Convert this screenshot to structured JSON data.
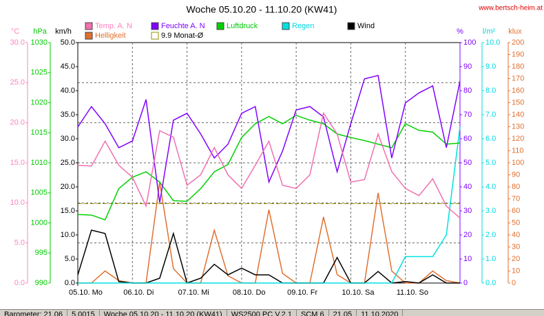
{
  "chart_data": {
    "type": "line",
    "title": "Woche 05.10.20 - 11.10.20 (KW41)",
    "source": "www.bertsch-heim.at",
    "x": [
      0,
      6,
      12,
      18,
      24,
      30,
      36,
      42,
      48,
      54,
      60,
      66,
      72,
      78,
      84,
      90,
      96,
      102,
      108,
      114,
      120,
      126,
      132,
      138,
      144,
      150,
      156,
      162,
      168
    ],
    "xlim": [
      0,
      168
    ],
    "xticks": [
      {
        "value": 0,
        "label": "05.10. Mo"
      },
      {
        "value": 24,
        "label": "06.10. Di"
      },
      {
        "value": 48,
        "label": "07.10. Mi"
      },
      {
        "value": 72,
        "label": "08.10. Do"
      },
      {
        "value": 96,
        "label": "09.10. Fr"
      },
      {
        "value": 120,
        "label": "10.10. Sa"
      },
      {
        "value": 144,
        "label": "11.10. So"
      }
    ],
    "grid": true,
    "axes": [
      {
        "label": "°C",
        "color": "#ff80c0",
        "lim": [
          0,
          30
        ],
        "ticks": [
          {
            "value": 0,
            "label": "0.0"
          },
          {
            "value": 5,
            "label": "5.0"
          },
          {
            "value": 10,
            "label": "10.0"
          },
          {
            "value": 15,
            "label": "15.0"
          },
          {
            "value": 20,
            "label": "20.0"
          },
          {
            "value": 25,
            "label": "25.0"
          },
          {
            "value": 30,
            "label": "30.0"
          }
        ]
      },
      {
        "label": "hPa",
        "color": "#00c800",
        "lim": [
          990,
          1030
        ],
        "ticks": [
          990,
          995,
          1000,
          1005,
          1010,
          1015,
          1020,
          1025,
          1030
        ]
      },
      {
        "label": "km/h",
        "color": "#000000",
        "lim": [
          0,
          50
        ],
        "ticks": [
          {
            "value": 0,
            "label": "0.0"
          },
          {
            "value": 5,
            "label": "5.0"
          },
          {
            "value": 10,
            "label": "10.0"
          },
          {
            "value": 15,
            "label": "15.0"
          },
          {
            "value": 20,
            "label": "20.0"
          },
          {
            "value": 25,
            "label": "25.0"
          },
          {
            "value": 30,
            "label": "30.0"
          },
          {
            "value": 35,
            "label": "35.0"
          },
          {
            "value": 40,
            "label": "40.0"
          },
          {
            "value": 45,
            "label": "45.0"
          },
          {
            "value": 50,
            "label": "50.0"
          }
        ]
      },
      {
        "label": "%",
        "color": "#8000ff",
        "lim": [
          0,
          100
        ],
        "ticks": [
          0,
          10,
          20,
          30,
          40,
          50,
          60,
          70,
          80,
          90,
          100
        ]
      },
      {
        "label": "l/m²",
        "color": "#00d8e0",
        "lim": [
          0,
          10
        ],
        "ticks": [
          {
            "value": 0,
            "label": "0.0"
          },
          {
            "value": 1,
            "label": "1.0"
          },
          {
            "value": 2,
            "label": "2.0"
          },
          {
            "value": 3,
            "label": "3.0"
          },
          {
            "value": 4,
            "label": "4.0"
          },
          {
            "value": 5,
            "label": "5.0"
          },
          {
            "value": 6,
            "label": "6.0"
          },
          {
            "value": 7,
            "label": "7.0"
          },
          {
            "value": 8,
            "label": "8.0"
          },
          {
            "value": 9,
            "label": "9.0"
          },
          {
            "value": 10,
            "label": "10.0"
          }
        ]
      },
      {
        "label": "klux",
        "color": "#e07030",
        "lim": [
          0,
          200
        ],
        "ticks": [
          0,
          10,
          20,
          30,
          40,
          50,
          60,
          70,
          80,
          90,
          100,
          110,
          120,
          130,
          140,
          150,
          160,
          170,
          180,
          190,
          200
        ]
      }
    ],
    "series": [
      {
        "name": "Temp. A. N",
        "color": "#f070b0",
        "axis": 0,
        "values": [
          14.7,
          14.6,
          17.7,
          14.7,
          13.2,
          9.6,
          19.0,
          18.2,
          12.2,
          13.5,
          16.9,
          13.5,
          11.8,
          14.7,
          17.7,
          12.2,
          11.8,
          13.5,
          21.2,
          18.6,
          12.6,
          12.9,
          18.6,
          13.9,
          11.8,
          10.9,
          13.0,
          9.6,
          8.1
        ]
      },
      {
        "name": "Feuchte A. N",
        "color": "#8000ff",
        "axis": 3,
        "values": [
          64.9,
          73.4,
          66.3,
          56.3,
          59.1,
          76.3,
          33.4,
          67.7,
          70.6,
          62.0,
          52.0,
          57.7,
          70.6,
          73.4,
          42.0,
          54.9,
          72.0,
          73.4,
          69.1,
          46.3,
          66.3,
          84.9,
          86.3,
          52.0,
          74.9,
          79.1,
          82.0,
          56.3,
          84.0
        ]
      },
      {
        "name": "Luftdruck",
        "color": "#00d000",
        "axis": 1,
        "values": [
          1001.4,
          1001.3,
          1000.5,
          1005.7,
          1007.6,
          1008.5,
          1006.8,
          1003.7,
          1003.6,
          1005.7,
          1008.5,
          1009.7,
          1014.2,
          1016.5,
          1017.7,
          1016.5,
          1017.9,
          1017.1,
          1016.5,
          1014.8,
          1014.2,
          1013.7,
          1013.1,
          1012.5,
          1016.5,
          1015.4,
          1015.1,
          1013.1,
          1013.3
        ]
      },
      {
        "name": "Regen",
        "color": "#00e0e0",
        "axis": 4,
        "values": [
          0,
          0,
          0,
          0,
          0,
          0,
          0,
          0,
          0,
          0,
          0,
          0,
          0,
          0,
          0,
          0,
          0,
          0,
          0,
          0,
          0,
          0,
          0,
          0,
          1.1,
          1.1,
          1.1,
          2.0,
          6.5
        ]
      },
      {
        "name": "Wind",
        "color": "#000000",
        "axis": 2,
        "values": [
          1.7,
          11.0,
          10.3,
          0.3,
          0,
          0,
          1.0,
          10.3,
          0,
          1.0,
          3.9,
          1.7,
          3.1,
          1.7,
          1.7,
          0,
          0,
          0,
          0,
          5.3,
          0,
          0,
          2.4,
          0,
          0.3,
          0,
          1.7,
          0,
          0
        ]
      },
      {
        "name": "Helligkeit",
        "color": "#e07030",
        "axis": 5,
        "values": [
          0,
          0,
          10,
          2,
          0,
          0,
          84,
          12,
          0,
          0,
          44,
          6,
          0,
          0,
          61,
          8,
          0,
          0,
          55,
          7,
          0,
          0,
          75,
          10,
          0,
          0,
          10,
          2,
          0
        ]
      }
    ],
    "reference": {
      "name": "9.9 Monat-Ø",
      "value": 9.9,
      "axis": 0,
      "color": "#909000"
    }
  },
  "status": [
    "Barometer: 21.06",
    "5.0015",
    "Woche 05.10.20 - 11.10.20 (KW41)",
    "WS2500 PC V.2.1",
    "SCM 6",
    "21.05",
    "11.10.2020"
  ]
}
